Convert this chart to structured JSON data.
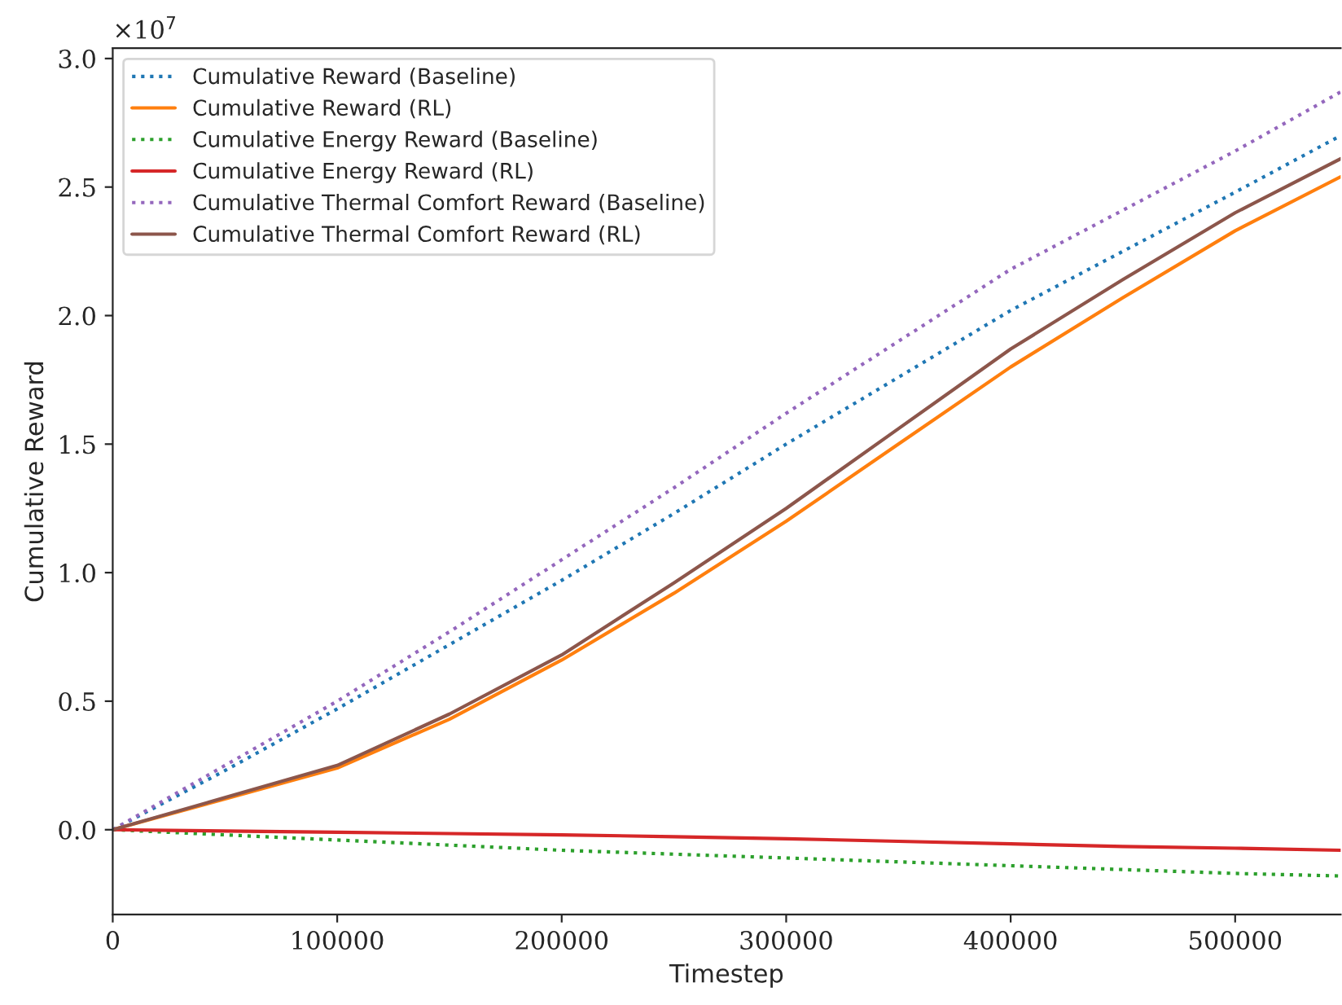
{
  "chart_data": {
    "type": "line",
    "xlabel": "Timestep",
    "ylabel": "Cumulative Reward",
    "annotations": [
      "×10$^{7}$"
    ],
    "xlim": [
      0,
      547000
    ],
    "xticks": [
      0,
      100000,
      200000,
      300000,
      400000,
      500000
    ],
    "ylim": [
      -0.33,
      3.04
    ],
    "yticks": [
      {
        "value": 0,
        "label": "0.0"
      },
      0.5,
      {
        "value": 1,
        "label": "1.0"
      },
      1.5,
      {
        "value": 2,
        "label": "2.0"
      },
      2.5,
      {
        "value": 3,
        "label": "3.0"
      }
    ],
    "grid": false,
    "legend": "top left",
    "marker": "none",
    "x": [
      0,
      50000,
      100000,
      150000,
      200000,
      250000,
      300000,
      350000,
      400000,
      450000,
      500000,
      547000
    ],
    "series": [
      {
        "name": "Cumulative Reward (Baseline)",
        "color": "#1f77b4",
        "line_style": "dotted",
        "values": [
          0,
          0.23,
          0.47,
          0.72,
          0.97,
          1.23,
          1.5,
          1.76,
          2.02,
          2.25,
          2.48,
          2.7
        ]
      },
      {
        "name": "Cumulative Reward (RL)",
        "color": "#ff7f0e",
        "line_style": "solid",
        "values": [
          0,
          0.12,
          0.24,
          0.43,
          0.66,
          0.92,
          1.2,
          1.5,
          1.8,
          2.07,
          2.33,
          2.54
        ]
      },
      {
        "name": "Cumulative Energy Reward (Baseline)",
        "color": "#2ca02c",
        "line_style": "dotted",
        "values": [
          0,
          -0.02,
          -0.04,
          -0.06,
          -0.08,
          -0.095,
          -0.11,
          -0.125,
          -0.14,
          -0.155,
          -0.17,
          -0.18
        ]
      },
      {
        "name": "Cumulative Energy Reward (RL)",
        "color": "#d62728",
        "line_style": "solid",
        "values": [
          0,
          -0.005,
          -0.01,
          -0.015,
          -0.02,
          -0.027,
          -0.035,
          -0.045,
          -0.055,
          -0.065,
          -0.072,
          -0.08
        ]
      },
      {
        "name": "Cumulative Thermal Comfort Reward (Baseline)",
        "color": "#9467bd",
        "line_style": "dotted",
        "values": [
          0,
          0.25,
          0.5,
          0.77,
          1.05,
          1.33,
          1.62,
          1.9,
          2.18,
          2.41,
          2.64,
          2.87
        ]
      },
      {
        "name": "Cumulative Thermal Comfort Reward (RL)",
        "color": "#8c564b",
        "line_style": "solid",
        "values": [
          0,
          0.125,
          0.25,
          0.45,
          0.68,
          0.96,
          1.25,
          1.56,
          1.87,
          2.14,
          2.4,
          2.61
        ]
      }
    ]
  }
}
